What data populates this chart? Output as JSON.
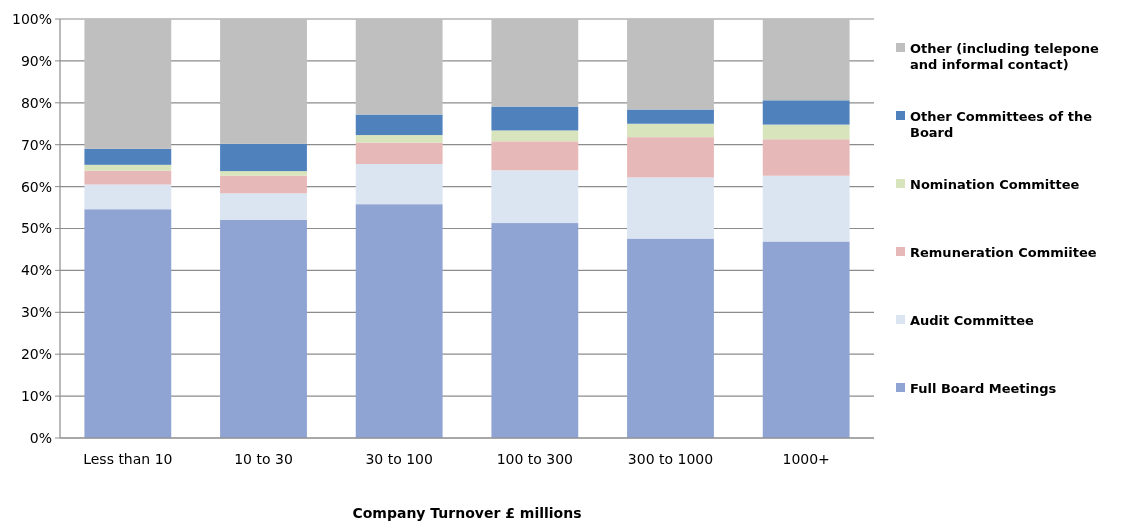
{
  "chart_data": {
    "type": "bar",
    "stacked": true,
    "xlabel": "Company Turnover £ millions",
    "categories": [
      "Less than 10",
      "10 to 30",
      "30 to 100",
      "100 to 300",
      "300 to 1000",
      "1000+"
    ],
    "series": [
      {
        "name": "Full Board Meetings",
        "color": "#8fa4d2",
        "values": [
          54.6,
          52.1,
          55.8,
          51.3,
          47.6,
          46.9
        ]
      },
      {
        "name": "Audit Committee",
        "color": "#dbe4f1",
        "values": [
          5.9,
          6.3,
          9.6,
          12.6,
          14.6,
          15.7
        ]
      },
      {
        "name": "Remuneration Commiitee",
        "color": "#e6b8b7",
        "values": [
          3.3,
          4.2,
          5.1,
          6.9,
          9.6,
          8.7
        ]
      },
      {
        "name": "Nomination Committee",
        "color": "#d8e4bc",
        "values": [
          1.4,
          1.1,
          1.8,
          2.6,
          3.2,
          3.5
        ]
      },
      {
        "name": "Other Committees of the Board",
        "color": "#4f81bd",
        "values": [
          3.8,
          6.5,
          4.9,
          5.7,
          3.4,
          5.8
        ]
      },
      {
        "name": "Other (including telepone and informal contact)",
        "color": "#bfbfbf",
        "values": [
          31.0,
          29.8,
          22.8,
          20.9,
          21.6,
          19.4
        ]
      }
    ],
    "ylim": [
      0,
      100
    ],
    "yticks": [
      {
        "value": 0,
        "label": "0%"
      },
      {
        "value": 10,
        "label": "10%"
      },
      {
        "value": 20,
        "label": "20%"
      },
      {
        "value": 30,
        "label": "30%"
      },
      {
        "value": 40,
        "label": "40%"
      },
      {
        "value": 50,
        "label": "50%"
      },
      {
        "value": 60,
        "label": "60%"
      },
      {
        "value": 70,
        "label": "70%"
      },
      {
        "value": 80,
        "label": "80%"
      },
      {
        "value": 90,
        "label": "90%"
      },
      {
        "value": 100,
        "label": "100%"
      }
    ],
    "grid": "y",
    "legend": "right"
  }
}
